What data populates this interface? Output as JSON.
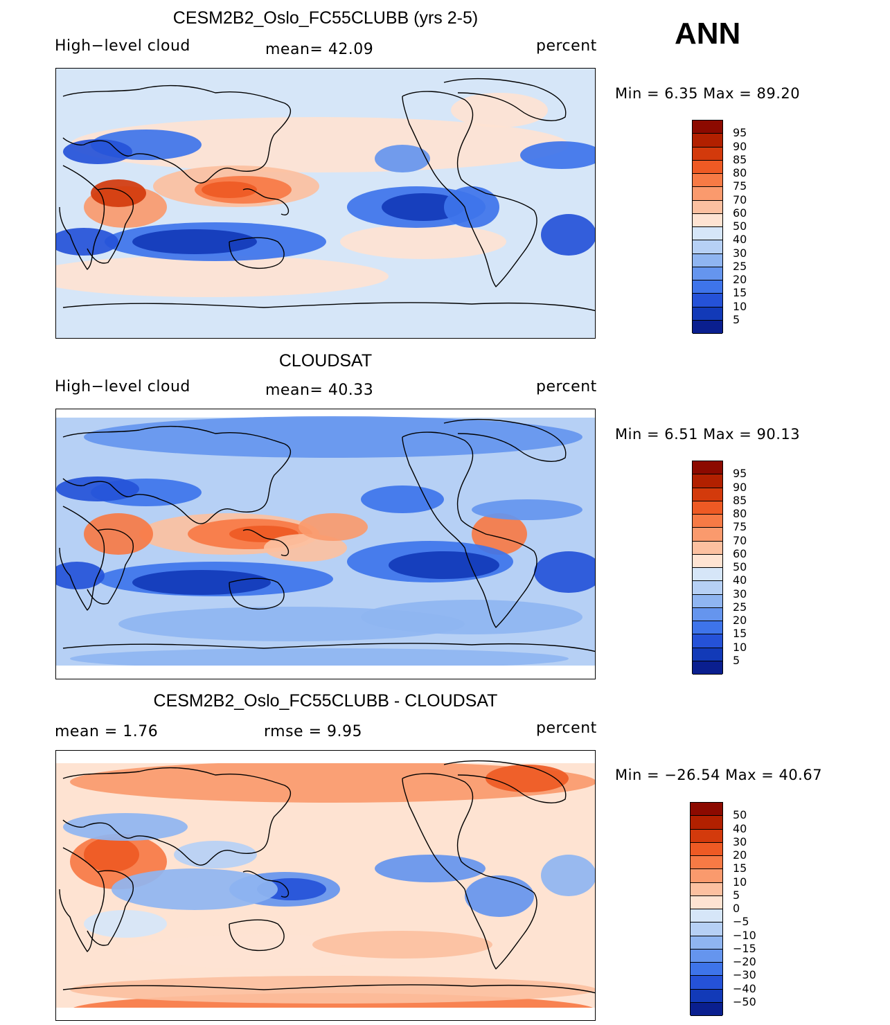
{
  "season": "ANN",
  "panels": [
    {
      "id": "model",
      "title": "CESM2B2_Oslo_FC55CLUBB (yrs 2-5)",
      "left_label": "High−level cloud",
      "center_label": "mean=   42.09",
      "right_label": "percent",
      "minmax": "Min =    6.35  Max =   89.20",
      "map_name": "model-high-cloud-map",
      "levels": [
        "95",
        "90",
        "85",
        "80",
        "75",
        "70",
        "60",
        "50",
        "40",
        "30",
        "25",
        "20",
        "15",
        "10",
        "5"
      ],
      "colors": [
        "#8c0a00",
        "#b22000",
        "#d33a0c",
        "#ee5a24",
        "#f77a45",
        "#fa9a6d",
        "#fcc0a0",
        "#fee3d2",
        "#d6e6f8",
        "#b6d0f5",
        "#8fb5f1",
        "#6595ee",
        "#3e74ea",
        "#2552d8",
        "#123ab8",
        "#0a1f8f"
      ],
      "bg": "#d6e6f8"
    },
    {
      "id": "obs",
      "title": "CLOUDSAT",
      "left_label": "High−level cloud",
      "center_label": "mean=   40.33",
      "right_label": "percent",
      "minmax": "Min =    6.51  Max =   90.13",
      "map_name": "cloudsat-high-cloud-map",
      "levels": [
        "95",
        "90",
        "85",
        "80",
        "75",
        "70",
        "60",
        "50",
        "40",
        "30",
        "25",
        "20",
        "15",
        "10",
        "5"
      ],
      "colors": [
        "#8c0a00",
        "#b22000",
        "#d33a0c",
        "#ee5a24",
        "#f77a45",
        "#fa9a6d",
        "#fcc0a0",
        "#fee3d2",
        "#d6e6f8",
        "#b6d0f5",
        "#8fb5f1",
        "#6595ee",
        "#3e74ea",
        "#2552d8",
        "#123ab8",
        "#0a1f8f"
      ],
      "bg": "#b6d0f5"
    },
    {
      "id": "diff",
      "title": "CESM2B2_Oslo_FC55CLUBB - CLOUDSAT",
      "left_label": "mean =     1.76",
      "center_label": "rmse =     9.95",
      "right_label": "percent",
      "minmax": "Min = −26.54  Max =   40.67",
      "map_name": "difference-map",
      "levels": [
        "50",
        "40",
        "30",
        "20",
        "15",
        "10",
        "5",
        "0",
        "−5",
        "−10",
        "−15",
        "−20",
        "−30",
        "−40",
        "−50"
      ],
      "colors": [
        "#8c0a00",
        "#b22000",
        "#d33a0c",
        "#ee5a24",
        "#f77a45",
        "#fa9a6d",
        "#fcc0a0",
        "#fee3d2",
        "#d6e6f8",
        "#b6d0f5",
        "#8fb5f1",
        "#6595ee",
        "#3e74ea",
        "#2552d8",
        "#123ab8",
        "#0a1f8f"
      ],
      "bg": "#fee3d2"
    }
  ]
}
